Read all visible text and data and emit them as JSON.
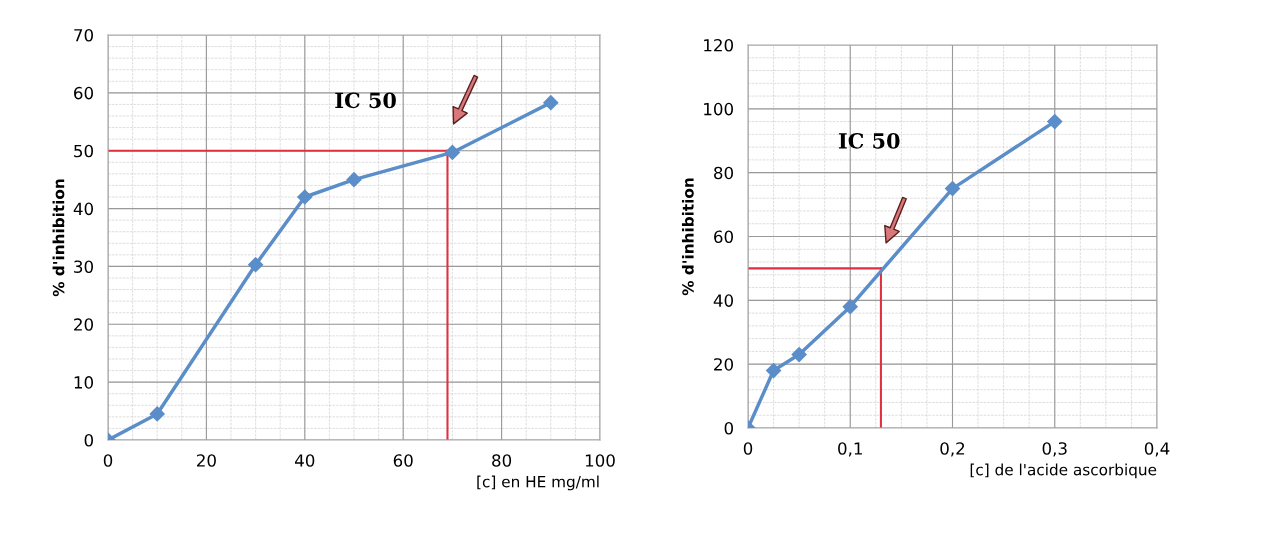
{
  "chart_data": [
    {
      "type": "line",
      "xlabel": "[c] en HE mg/ml",
      "ylabel": "% d'inhibition",
      "x": [
        0,
        10,
        30,
        40,
        50,
        70,
        90
      ],
      "series": [
        {
          "color": "#5b8ec9",
          "values": [
            0,
            4.5,
            30.3,
            42,
            45,
            49.7,
            58.3
          ]
        }
      ],
      "xlim": [
        0,
        100
      ],
      "xticks": [
        0,
        20,
        40,
        60,
        80,
        100
      ],
      "ylim": [
        0,
        70
      ],
      "yticks": [
        0,
        10,
        20,
        30,
        40,
        50,
        60,
        70
      ],
      "grid": true,
      "marker": "diamond",
      "line_style": "solid",
      "ref_lines": [
        {
          "axis": "y",
          "value": 50,
          "color": "#e03040"
        },
        {
          "axis": "x",
          "value": 69,
          "color": "#e03040"
        }
      ],
      "annotations": [
        "IC 50"
      ]
    },
    {
      "type": "line",
      "xlabel": "[c] de l'acide ascorbique",
      "ylabel": "% d'inhibition",
      "x": [
        0,
        0.025,
        0.05,
        0.1,
        0.2,
        0.3
      ],
      "series": [
        {
          "color": "#5b8ec9",
          "values": [
            0,
            18,
            23,
            38,
            75,
            96
          ]
        }
      ],
      "xlim": [
        0,
        0.4
      ],
      "xticks": [
        0,
        {
          "value": 0.1,
          "label": "0,1"
        },
        {
          "value": 0.2,
          "label": "0,2"
        },
        {
          "value": 0.3,
          "label": "0,3"
        },
        {
          "value": 0.4,
          "label": "0,4"
        }
      ],
      "ylim": [
        0,
        120
      ],
      "yticks": [
        0,
        20,
        40,
        60,
        80,
        100,
        120
      ],
      "grid": true,
      "marker": "diamond",
      "line_style": "solid",
      "ref_lines": [
        {
          "axis": "y",
          "value": 50,
          "color": "#e03040"
        },
        {
          "axis": "x",
          "value": 0.13,
          "color": "#e03040"
        }
      ],
      "annotations": [
        "IC 50"
      ]
    }
  ]
}
